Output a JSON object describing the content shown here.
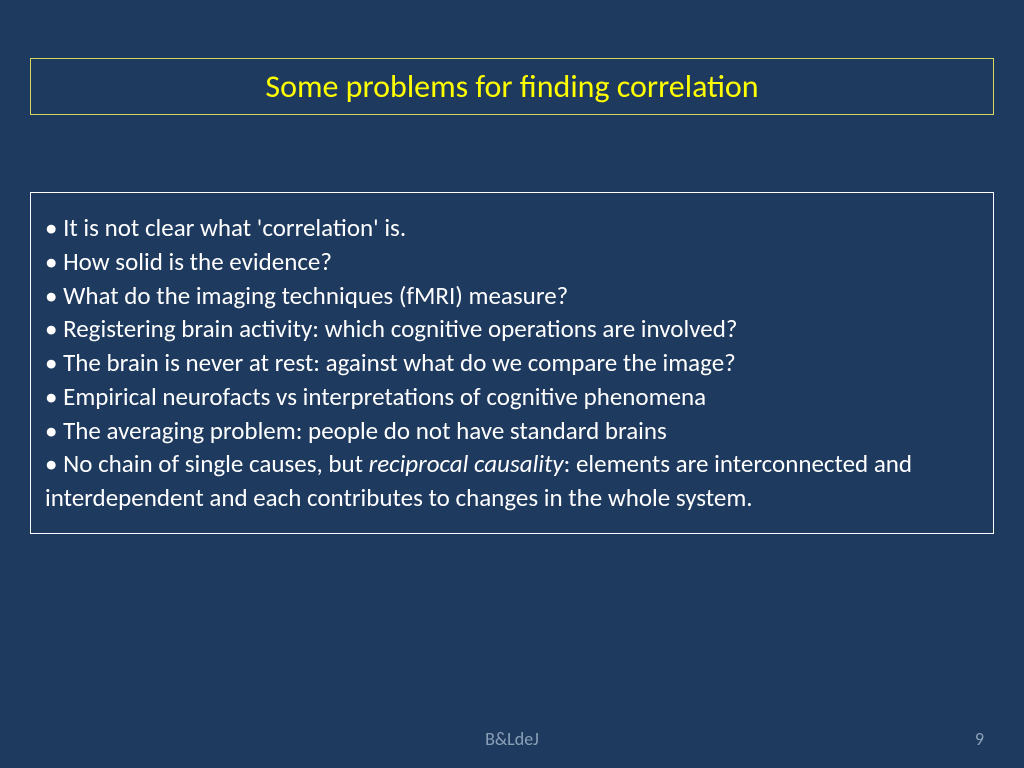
{
  "slide": {
    "background_color": "#1f3a5f",
    "title": {
      "text": "Some problems for finding correlation",
      "color": "#ffff00",
      "border_color": "#d8d860",
      "fontsize": 32
    },
    "content": {
      "border_color": "#ffffff",
      "text_color": "#ffffff",
      "fontsize": 25,
      "bullets": [
        {
          "text": "It is not clear what 'correlation' is."
        },
        {
          "text": "How solid is the evidence?"
        },
        {
          "text": "What do the imaging  techniques (fMRI) measure?"
        },
        {
          "text": "Registering brain activity: which cognitive operations are involved?"
        },
        {
          "text": "The brain is never at rest: against what do we compare the image?"
        },
        {
          "text": "Empirical neurofacts vs interpretations of cognitive phenomena"
        },
        {
          "text": "The averaging problem: people do not have standard brains"
        }
      ],
      "last_bullet": {
        "prefix": "No chain of single causes, but ",
        "italic": "reciprocal causality",
        "suffix": ":  elements are interconnected and interdependent and each contributes to changes in the whole system."
      }
    },
    "footer": {
      "author": "B&LdeJ",
      "page": "9",
      "color": "#8aa0b8"
    }
  }
}
